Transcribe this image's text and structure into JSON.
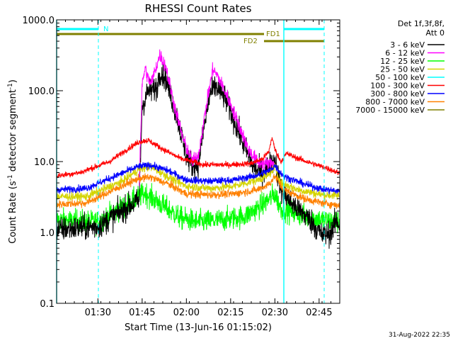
{
  "chart_data": {
    "type": "line",
    "title": "RHESSI Count Rates",
    "xlabel": "Start Time (13-Jun-16 01:15:02)",
    "ylabel_main": "Count Rate (s",
    "ylabel_sup": "-1",
    "ylabel_tail": " detector segment",
    "ylabel_sup2": "-1",
    "ylabel_close": ")",
    "yscale": "log",
    "ylim": [
      0.1,
      1000.0
    ],
    "xlim_minutes": [
      76,
      172
    ],
    "x_ticks": [
      {
        "label": "01:30",
        "min": 90
      },
      {
        "label": "01:45",
        "min": 105
      },
      {
        "label": "02:00",
        "min": 120
      },
      {
        "label": "02:15",
        "min": 135
      },
      {
        "label": "02:30",
        "min": 150
      },
      {
        "label": "02:45",
        "min": 165
      }
    ],
    "y_ticks": [
      {
        "label": "0.1",
        "value": 0.1
      },
      {
        "label": "1.0",
        "value": 1.0
      },
      {
        "label": "10.0",
        "value": 10.0
      },
      {
        "label": "100.0",
        "value": 100.0
      },
      {
        "label": "1000.0",
        "value": 1000.0
      }
    ],
    "legend_header": [
      "Det 1f,3f,8f,",
      "Att 0"
    ],
    "legend": [
      {
        "name": "3 - 6 keV",
        "color": "#000000"
      },
      {
        "name": "6 - 12 keV",
        "color": "#ff00ff"
      },
      {
        "name": "12 - 25 keV",
        "color": "#00ff00"
      },
      {
        "name": "25 - 50 keV",
        "color": "#d4d400"
      },
      {
        "name": "50 - 100 keV",
        "color": "#00ffff"
      },
      {
        "name": "100 - 300 keV",
        "color": "#ff0000"
      },
      {
        "name": "300 - 800 keV",
        "color": "#0000ff"
      },
      {
        "name": "800 - 7000 keV",
        "color": "#ff8000"
      },
      {
        "name": "7000 - 15000 keV",
        "color": "#808000"
      }
    ],
    "series": [
      {
        "color": "#00ff00",
        "noise": 0.32,
        "points": [
          [
            76,
            1.5
          ],
          [
            90,
            1.4
          ],
          [
            100,
            2.5
          ],
          [
            106,
            3.6
          ],
          [
            112,
            2.4
          ],
          [
            118,
            1.6
          ],
          [
            124,
            1.4
          ],
          [
            132,
            1.5
          ],
          [
            140,
            1.7
          ],
          [
            146,
            2.5
          ],
          [
            150,
            3.5
          ],
          [
            152,
            2.2
          ],
          [
            158,
            1.8
          ],
          [
            166,
            1.5
          ],
          [
            172,
            1.4
          ]
        ]
      },
      {
        "color": "#000000",
        "noise": 0.35,
        "points": [
          [
            76,
            1.1
          ],
          [
            90,
            1.2
          ],
          [
            100,
            2.3
          ],
          [
            104,
            2.8
          ],
          [
            105,
            60
          ],
          [
            107,
            98
          ],
          [
            108,
            100
          ],
          [
            110,
            110
          ],
          [
            111,
            185
          ],
          [
            113,
            150
          ],
          [
            117,
            40
          ],
          [
            120,
            12
          ],
          [
            122,
            9
          ],
          [
            124,
            9
          ],
          [
            126,
            30
          ],
          [
            128,
            90
          ],
          [
            130,
            115
          ],
          [
            133,
            80
          ],
          [
            136,
            40
          ],
          [
            140,
            15
          ],
          [
            143,
            8
          ],
          [
            146,
            7
          ],
          [
            150,
            11
          ],
          [
            152,
            4
          ],
          [
            156,
            2.5
          ],
          [
            162,
            1.5
          ],
          [
            166,
            0.9
          ],
          [
            169,
            1.0
          ],
          [
            171,
            1.5
          ],
          [
            172,
            1.2
          ]
        ]
      },
      {
        "color": "#ff00ff",
        "noise": 0.2,
        "points": [
          [
            104,
            5
          ],
          [
            105,
            120
          ],
          [
            106,
            210
          ],
          [
            107,
            150
          ],
          [
            108,
            125
          ],
          [
            109,
            170
          ],
          [
            111,
            320
          ],
          [
            113,
            220
          ],
          [
            116,
            60
          ],
          [
            119,
            20
          ],
          [
            122,
            10
          ],
          [
            124,
            12
          ],
          [
            127,
            70
          ],
          [
            129,
            205
          ],
          [
            131,
            150
          ],
          [
            134,
            80
          ],
          [
            137,
            40
          ],
          [
            141,
            15
          ],
          [
            144,
            10
          ],
          [
            148,
            9
          ],
          [
            150,
            10
          ]
        ]
      },
      {
        "color": "#d4d400",
        "noise": 0.12,
        "points": [
          [
            76,
            3.2
          ],
          [
            86,
            3.2
          ],
          [
            98,
            5.2
          ],
          [
            104,
            7.8
          ],
          [
            108,
            8.5
          ],
          [
            114,
            6
          ],
          [
            120,
            4.5
          ],
          [
            128,
            4.2
          ],
          [
            136,
            4.5
          ],
          [
            144,
            5.5
          ],
          [
            148,
            6.5
          ],
          [
            150,
            8.5
          ],
          [
            152,
            5
          ],
          [
            158,
            4
          ],
          [
            166,
            3.4
          ],
          [
            172,
            3.3
          ]
        ]
      },
      {
        "color": "#0000ff",
        "noise": 0.1,
        "points": [
          [
            76,
            4.0
          ],
          [
            86,
            4.2
          ],
          [
            98,
            6.8
          ],
          [
            104,
            8.6
          ],
          [
            108,
            8.9
          ],
          [
            114,
            7.4
          ],
          [
            120,
            5.5
          ],
          [
            128,
            5.3
          ],
          [
            136,
            5.5
          ],
          [
            144,
            6.4
          ],
          [
            148,
            7.4
          ],
          [
            150,
            8.8
          ],
          [
            153,
            6.2
          ],
          [
            160,
            4.8
          ],
          [
            166,
            4.1
          ],
          [
            172,
            3.8
          ]
        ]
      },
      {
        "color": "#ff8000",
        "noise": 0.11,
        "points": [
          [
            76,
            2.5
          ],
          [
            86,
            2.6
          ],
          [
            98,
            4.5
          ],
          [
            104,
            5.8
          ],
          [
            108,
            6.0
          ],
          [
            114,
            4.8
          ],
          [
            120,
            3.5
          ],
          [
            128,
            3.4
          ],
          [
            136,
            3.5
          ],
          [
            144,
            4.0
          ],
          [
            148,
            4.8
          ],
          [
            150,
            6.2
          ],
          [
            153,
            4.0
          ],
          [
            160,
            3.0
          ],
          [
            166,
            2.6
          ],
          [
            172,
            2.4
          ]
        ]
      },
      {
        "color": "#ff0000",
        "noise": 0.08,
        "points": [
          [
            76,
            6.3
          ],
          [
            84,
            7.0
          ],
          [
            94,
            10
          ],
          [
            100,
            15
          ],
          [
            104,
            19
          ],
          [
            107,
            20
          ],
          [
            112,
            15
          ],
          [
            118,
            11
          ],
          [
            126,
            9
          ],
          [
            134,
            9
          ],
          [
            142,
            9.4
          ],
          [
            146,
            11
          ],
          [
            148,
            14
          ],
          [
            149,
            22
          ],
          [
            150,
            15
          ],
          [
            152,
            10
          ],
          [
            154,
            13
          ],
          [
            158,
            11
          ],
          [
            164,
            9
          ],
          [
            168,
            8
          ],
          [
            172,
            6.8
          ]
        ]
      }
    ]
  },
  "annotations": {
    "n_label": "N",
    "fd1_label": "FD1",
    "fd2_label": "FD2"
  },
  "footer": {
    "timestamp": "31-Aug-2022 22:35"
  },
  "colors": {
    "cyan": "#00ffff",
    "olive": "#808000",
    "axis": "#000000"
  }
}
